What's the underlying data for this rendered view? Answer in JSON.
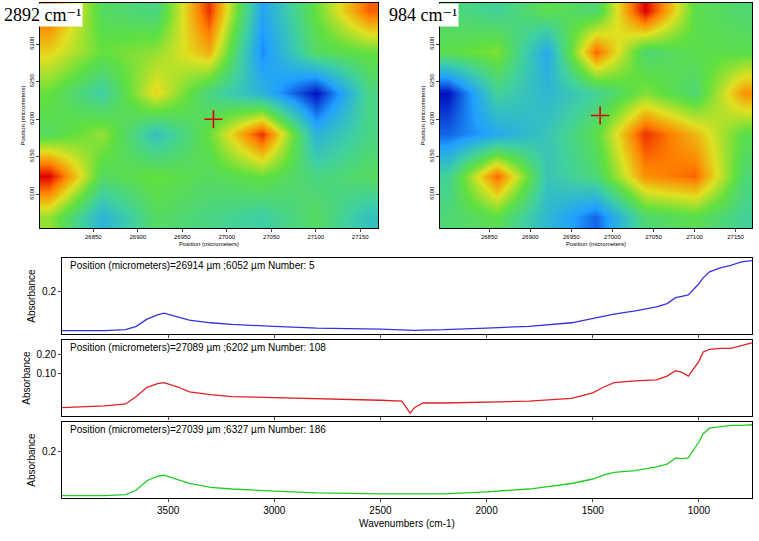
{
  "chart_data": [
    {
      "type": "heatmap",
      "title": "2892 cm⁻¹",
      "x_label": "Position (micrometers)",
      "y_label": "Position (micrometers)",
      "x": [
        26800,
        26860,
        26920,
        26980,
        27040,
        27100,
        27160
      ],
      "y": [
        6070,
        6125,
        6180,
        6235,
        6290,
        6345
      ],
      "cells": [
        [
          0.6,
          0.3,
          0.5,
          0.45,
          0.4,
          0.5,
          0.35
        ],
        [
          0.95,
          0.5,
          0.55,
          0.5,
          0.55,
          0.45,
          0.5
        ],
        [
          0.5,
          0.6,
          0.35,
          0.55,
          0.9,
          0.3,
          0.45
        ],
        [
          0.55,
          0.4,
          0.7,
          0.45,
          0.3,
          0.05,
          0.45
        ],
        [
          0.7,
          0.55,
          0.6,
          0.75,
          0.2,
          0.5,
          0.55
        ],
        [
          0.85,
          0.5,
          0.45,
          0.9,
          0.25,
          0.55,
          0.85
        ]
      ],
      "xlim": [
        26790,
        27170
      ],
      "ylim": [
        6055,
        6355
      ],
      "xticks": [
        26850,
        26900,
        26950,
        27000,
        27050,
        27100,
        27150
      ],
      "yticks": [
        6100,
        6150,
        6200,
        6250,
        6300
      ],
      "grid": false,
      "series": [
        {
          "type": "scatter",
          "x": [
            26985
          ],
          "y": [
            6200
          ],
          "color": "#dd0000",
          "marker": "cross"
        }
      ]
    },
    {
      "type": "heatmap",
      "title": "984 cm⁻¹",
      "x_label": "Position (micrometers)",
      "y_label": "Position (micrometers)",
      "x": [
        26800,
        26860,
        26920,
        26980,
        27040,
        27100,
        27160
      ],
      "y": [
        6070,
        6125,
        6180,
        6235,
        6290,
        6345
      ],
      "cells": [
        [
          0.5,
          0.55,
          0.35,
          0.2,
          0.5,
          0.55,
          0.45
        ],
        [
          0.45,
          0.85,
          0.4,
          0.5,
          0.8,
          0.85,
          0.5
        ],
        [
          0.2,
          0.3,
          0.4,
          0.55,
          0.9,
          0.75,
          0.55
        ],
        [
          0.1,
          0.45,
          0.35,
          0.45,
          0.6,
          0.5,
          0.8
        ],
        [
          0.55,
          0.6,
          0.3,
          0.85,
          0.5,
          0.55,
          0.55
        ],
        [
          0.5,
          0.45,
          0.55,
          0.5,
          0.95,
          0.55,
          0.5
        ]
      ],
      "xlim": [
        26790,
        27170
      ],
      "ylim": [
        6055,
        6355
      ],
      "xticks": [
        26850,
        26900,
        26950,
        27000,
        27050,
        27100,
        27150
      ],
      "yticks": [
        6100,
        6150,
        6200,
        6250,
        6300
      ],
      "grid": false,
      "series": [
        {
          "type": "scatter",
          "x": [
            26985
          ],
          "y": [
            6205
          ],
          "color": "#dd0000",
          "marker": "cross"
        }
      ]
    },
    {
      "type": "line",
      "title": "Position (micrometers)=26914 µm ;6052 µm Number: 5",
      "y_label": "Absorbance",
      "x": [
        4000,
        3800,
        3700,
        3650,
        3600,
        3550,
        3520,
        3450,
        3400,
        3300,
        3200,
        3000,
        2800,
        2500,
        2400,
        2360,
        2340,
        2300,
        2200,
        2000,
        1800,
        1600,
        1500,
        1450,
        1400,
        1300,
        1200,
        1150,
        1110,
        1080,
        1050,
        1000,
        980,
        950,
        900,
        850,
        800,
        750
      ],
      "series": [
        {
          "color": "#3333dd",
          "values": [
            0.08,
            0.08,
            0.083,
            0.093,
            0.115,
            0.128,
            0.133,
            0.12,
            0.112,
            0.104,
            0.099,
            0.093,
            0.088,
            0.085,
            0.083,
            0.08,
            0.081,
            0.082,
            0.083,
            0.088,
            0.093,
            0.104,
            0.117,
            0.125,
            0.13,
            0.14,
            0.152,
            0.162,
            0.18,
            0.184,
            0.188,
            0.222,
            0.24,
            0.258,
            0.27,
            0.278,
            0.288,
            0.292
          ]
        }
      ],
      "xlim": [
        4000,
        750
      ],
      "ylim": [
        0.07,
        0.3
      ],
      "xticks": [
        3500,
        3000,
        2500,
        2000,
        1500,
        1000
      ],
      "yticks": [
        0.2
      ],
      "tick_labels": "y",
      "grid": false
    },
    {
      "type": "line",
      "title": "Position (micrometers)=27089 µm ;6202 µm Number: 108",
      "y_label": "Absorbance",
      "x": [
        4000,
        3800,
        3700,
        3650,
        3600,
        3550,
        3520,
        3450,
        3400,
        3300,
        3200,
        3000,
        2800,
        2500,
        2400,
        2360,
        2340,
        2300,
        2200,
        2000,
        1800,
        1600,
        1500,
        1450,
        1400,
        1300,
        1200,
        1150,
        1110,
        1080,
        1050,
        1000,
        980,
        950,
        900,
        850,
        800,
        750
      ],
      "series": [
        {
          "color": "#dd2222",
          "values": [
            -0.085,
            -0.075,
            -0.065,
            -0.025,
            0.025,
            0.045,
            0.05,
            0.025,
            0.0,
            -0.015,
            -0.025,
            -0.03,
            -0.035,
            -0.045,
            -0.05,
            -0.115,
            -0.085,
            -0.06,
            -0.06,
            -0.055,
            -0.05,
            -0.035,
            -0.005,
            0.025,
            0.05,
            0.06,
            0.065,
            0.085,
            0.115,
            0.105,
            0.085,
            0.165,
            0.215,
            0.23,
            0.235,
            0.235,
            0.25,
            0.265
          ]
        }
      ],
      "xlim": [
        4000,
        750
      ],
      "ylim": [
        -0.13,
        0.28
      ],
      "xticks": [
        3500,
        3000,
        2500,
        2000,
        1500,
        1000
      ],
      "yticks": [
        {
          "value": 0.1,
          "label": "0.10"
        },
        {
          "value": 0.2,
          "label": "0.20"
        }
      ],
      "tick_labels": "y",
      "grid": false
    },
    {
      "type": "line",
      "title": "Position (micrometers)=27039 µm ;6327 µm Number: 186",
      "x_label": "Wavenumbers (cm-1)",
      "y_label": "Absorbance",
      "x": [
        4000,
        3800,
        3700,
        3650,
        3600,
        3550,
        3520,
        3450,
        3400,
        3300,
        3200,
        3000,
        2800,
        2500,
        2400,
        2360,
        2340,
        2300,
        2200,
        2000,
        1800,
        1600,
        1500,
        1450,
        1400,
        1300,
        1200,
        1150,
        1110,
        1080,
        1050,
        1000,
        980,
        950,
        900,
        850,
        800,
        750
      ],
      "series": [
        {
          "color": "#22cc22",
          "values": [
            0.072,
            0.072,
            0.075,
            0.088,
            0.115,
            0.128,
            0.131,
            0.117,
            0.107,
            0.096,
            0.091,
            0.085,
            0.08,
            0.077,
            0.077,
            0.075,
            0.075,
            0.077,
            0.077,
            0.083,
            0.091,
            0.107,
            0.12,
            0.131,
            0.139,
            0.144,
            0.155,
            0.163,
            0.181,
            0.179,
            0.181,
            0.227,
            0.251,
            0.267,
            0.272,
            0.275,
            0.275,
            0.277
          ]
        }
      ],
      "xlim": [
        4000,
        750
      ],
      "ylim": [
        0.065,
        0.285
      ],
      "xticks": [
        3500,
        3000,
        2500,
        2000,
        1500,
        1000
      ],
      "yticks": [
        0.2
      ],
      "grid": false
    }
  ]
}
